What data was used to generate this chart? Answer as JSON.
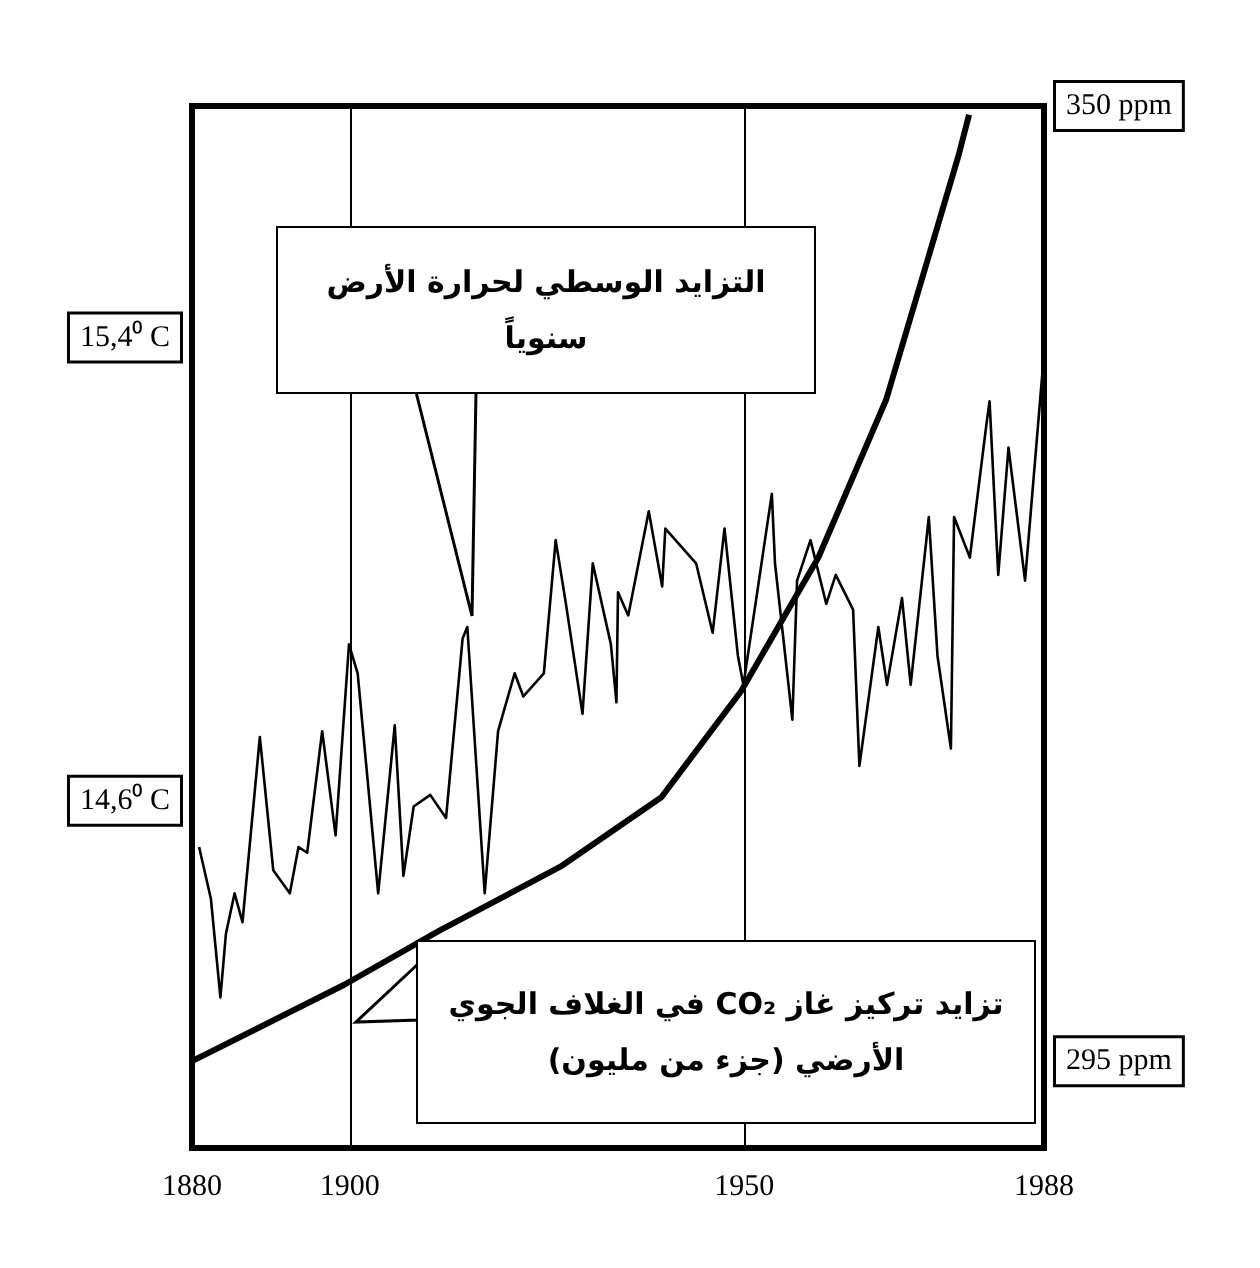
{
  "chart_data": {
    "type": "line",
    "xlim": [
      1880,
      1988
    ],
    "xticks": [
      1880,
      1900,
      1950,
      1988
    ],
    "ylim": [
      14.0,
      15.8
    ],
    "yticks": [
      {
        "value": 14.6,
        "label": "14,6⁰ C"
      },
      {
        "value": 15.4,
        "label": "15,4⁰ C"
      }
    ],
    "y2lim": [
      290,
      350
    ],
    "y2ticks": [
      {
        "value": 295,
        "label": "295 ppm"
      },
      {
        "value": 350,
        "label": "350 ppm"
      }
    ],
    "grid": "x",
    "marker": "none",
    "series": [
      {
        "name": "التزايد الوسطي لحرارة الأرض سنوياً",
        "color": "#000000",
        "x": [
          1880.9,
          1882.4,
          1883.6,
          1884.3,
          1885.4,
          1886.4,
          1888.6,
          1890.3,
          1892.4,
          1893.5,
          1894.6,
          1896.5,
          1898.2,
          1899.9,
          1901.0,
          1903.6,
          1905.7,
          1906.8,
          1908.1,
          1910.2,
          1912.2,
          1914.3,
          1914.9,
          1917.1,
          1918.8,
          1920.9,
          1922.0,
          1924.6,
          1926.1,
          1927.4,
          1929.5,
          1930.8,
          1933.1,
          1933.8,
          1934.0,
          1935.3,
          1937.9,
          1939.6,
          1940.0,
          1943.9,
          1946.0,
          1947.5,
          1949.2,
          1949.9,
          1953.5,
          1953.9,
          1956.1,
          1956.7,
          1958.4,
          1960.4,
          1961.6,
          1963.8,
          1964.6,
          1967.0,
          1968.1,
          1970.0,
          1971.1,
          1973.4,
          1974.5,
          1976.2,
          1976.6,
          1978.6,
          1980.7,
          1981.1,
          1982.2,
          1983.5,
          1985.6,
          1987.8
        ],
        "values": [
          14.52,
          14.43,
          14.26,
          14.37,
          14.44,
          14.39,
          14.71,
          14.48,
          14.44,
          14.52,
          14.51,
          14.72,
          14.54,
          14.87,
          14.82,
          14.44,
          14.73,
          14.47,
          14.59,
          14.61,
          14.57,
          14.88,
          14.9,
          14.44,
          14.72,
          14.82,
          14.78,
          14.82,
          15.05,
          14.94,
          14.75,
          15.01,
          14.87,
          14.77,
          14.96,
          14.92,
          15.1,
          14.97,
          15.07,
          15.01,
          14.89,
          15.07,
          14.85,
          14.8,
          15.13,
          15.01,
          14.74,
          14.98,
          15.05,
          14.94,
          14.99,
          14.93,
          14.66,
          14.9,
          14.8,
          14.95,
          14.8,
          15.09,
          14.85,
          14.69,
          15.09,
          15.02,
          15.25,
          15.29,
          14.99,
          15.21,
          14.98,
          15.34
        ]
      },
      {
        "name": "تزايد تركيز غاز CO₂ في الغلاف الجوي الأرضي (جزء من مليون)",
        "color": "#000000",
        "axis": "y2",
        "x": [
          1880,
          1899.3,
          1911.3,
          1926.7,
          1939.5,
          1949.6,
          1959.4,
          1968.0,
          1977.2,
          1978.5
        ],
        "values": [
          295,
          299.4,
          302.5,
          306.2,
          310.2,
          316.3,
          324.0,
          333.1,
          347.2,
          349.5
        ]
      }
    ]
  }
}
